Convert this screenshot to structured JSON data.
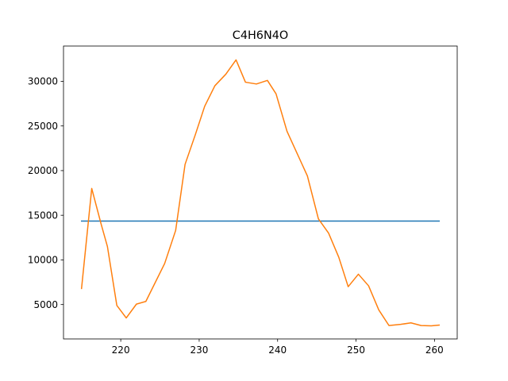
{
  "chart_data": {
    "type": "line",
    "title": "C4H6N4O",
    "xlabel": "",
    "ylabel": "",
    "xlim": [
      212.7,
      262.9
    ],
    "ylim": [
      1150,
      33950
    ],
    "xticks": [
      220,
      230,
      240,
      250,
      260
    ],
    "yticks": [
      5000,
      10000,
      15000,
      20000,
      25000,
      30000
    ],
    "grid": false,
    "series": [
      {
        "color": "#1f77b4",
        "x": [
          215.0,
          260.6
        ],
        "y": [
          14350,
          14350
        ]
      },
      {
        "color": "#ff7f0e",
        "x": [
          215.0,
          216.3,
          217.5,
          218.3,
          219.5,
          220.7,
          222.0,
          223.2,
          225.6,
          227.0,
          228.2,
          229.5,
          230.7,
          232.0,
          233.4,
          234.7,
          235.9,
          237.3,
          238.7,
          239.8,
          241.2,
          242.5,
          243.8,
          245.2,
          246.5,
          247.8,
          249.0,
          250.3,
          251.6,
          252.9,
          254.2,
          255.7,
          257.0,
          258.3,
          259.6,
          260.6
        ],
        "y": [
          6800,
          18000,
          14000,
          11500,
          4900,
          3500,
          5050,
          5350,
          9600,
          13300,
          20700,
          24000,
          27200,
          29500,
          30800,
          32400,
          29900,
          29700,
          30100,
          28600,
          24400,
          21900,
          19400,
          14600,
          13000,
          10300,
          7000,
          8400,
          7100,
          4400,
          2650,
          2780,
          2950,
          2650,
          2620,
          2700
        ]
      }
    ]
  }
}
